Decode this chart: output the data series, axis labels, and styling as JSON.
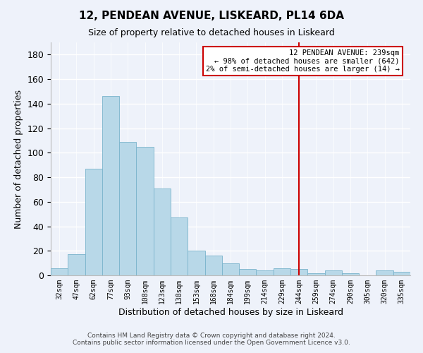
{
  "title": "12, PENDEAN AVENUE, LISKEARD, PL14 6DA",
  "subtitle": "Size of property relative to detached houses in Liskeard",
  "xlabel": "Distribution of detached houses by size in Liskeard",
  "ylabel": "Number of detached properties",
  "bar_labels": [
    "32sqm",
    "47sqm",
    "62sqm",
    "77sqm",
    "93sqm",
    "108sqm",
    "123sqm",
    "138sqm",
    "153sqm",
    "168sqm",
    "184sqm",
    "199sqm",
    "214sqm",
    "229sqm",
    "244sqm",
    "259sqm",
    "274sqm",
    "290sqm",
    "305sqm",
    "320sqm",
    "335sqm"
  ],
  "bar_values": [
    6,
    17,
    87,
    146,
    109,
    105,
    71,
    47,
    20,
    16,
    10,
    5,
    4,
    6,
    5,
    2,
    4,
    2,
    0,
    4,
    3
  ],
  "bar_color": "#b8d8e8",
  "bar_edgecolor": "#7ab4cc",
  "ylim": [
    0,
    190
  ],
  "yticks": [
    0,
    20,
    40,
    60,
    80,
    100,
    120,
    140,
    160,
    180
  ],
  "vline_color": "#cc0000",
  "vline_index": 14,
  "annotation_title": "12 PENDEAN AVENUE: 239sqm",
  "annotation_line1": "← 98% of detached houses are smaller (642)",
  "annotation_line2": "2% of semi-detached houses are larger (14) →",
  "footer1": "Contains HM Land Registry data © Crown copyright and database right 2024.",
  "footer2": "Contains public sector information licensed under the Open Government Licence v3.0.",
  "background_color": "#eef2fa",
  "plot_background": "#eef2fa",
  "grid_color": "#ffffff"
}
